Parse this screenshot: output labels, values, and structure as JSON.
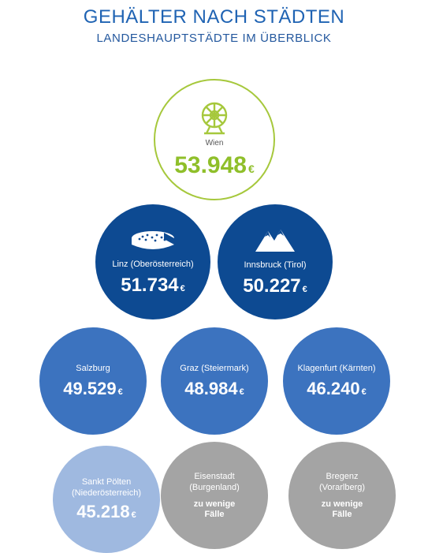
{
  "header": {
    "title": "GEHÄLTER NACH STÄDTEN",
    "subtitle": "LANDESHAUPTSTÄDTE IM ÜBERBLICK"
  },
  "currency": "€",
  "cities": {
    "wien": {
      "name": "Wien",
      "value": "53.948",
      "icon": "ferris-wheel-icon"
    },
    "linz": {
      "name": "Linz (Oberösterreich)",
      "value": "51.734",
      "icon": "cake-icon"
    },
    "innsbruck": {
      "name": "Innsbruck (Tirol)",
      "value": "50.227",
      "icon": "mountains-icon"
    },
    "salzburg": {
      "name": "Salzburg",
      "value": "49.529"
    },
    "graz": {
      "name": "Graz (Steiermark)",
      "value": "48.984"
    },
    "klagenfurt": {
      "name": "Klagenfurt (Kärnten)",
      "value": "46.240"
    },
    "stpoelten": {
      "name_line1": "Sankt Pölten",
      "name_line2": "(Niederösterreich)",
      "value": "45.218"
    },
    "eisenstadt": {
      "name_line1": "Eisenstadt",
      "name_line2": "(Burgenland)",
      "note_line1": "zu wenige",
      "note_line2": "Fälle"
    },
    "bregenz": {
      "name_line1": "Bregenz",
      "name_line2": "(Vorarlberg)",
      "note_line1": "zu wenige",
      "note_line2": "Fälle"
    }
  },
  "colors": {
    "title": "#1f63b3",
    "wien_ring": "#a6c83c",
    "wien_value": "#8fbf2a",
    "dark_blue": "#0d4a92",
    "mid_blue": "#3c73bf",
    "light_blue": "#9fb9e0",
    "grey": "#a4a4a4"
  }
}
